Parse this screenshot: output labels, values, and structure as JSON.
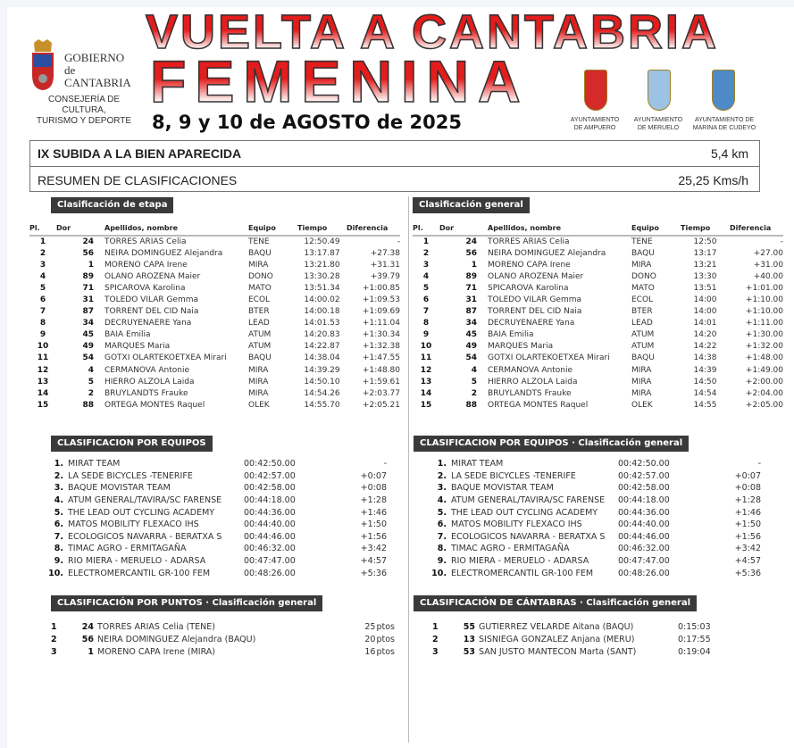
{
  "header": {
    "gov_name": [
      "GOBIERNO",
      "de",
      "CANTABRIA"
    ],
    "gov_department": [
      "CONSEJERÍA DE CULTURA,",
      "TURISMO Y DEPORTE"
    ],
    "title_line1": "VUELTA A CANTABRIA",
    "title_line2": "FEMENINA",
    "dates": "8, 9 y 10 de AGOSTO de 2025",
    "municipalities": [
      {
        "line1": "AYUNTAMIENTO",
        "line2": "DE AMPUERO",
        "color": "#d42a2a"
      },
      {
        "line1": "AYUNTAMIENTO",
        "line2": "DE MERUELO",
        "color": "#7fb0d8"
      },
      {
        "line1": "AYUNTAMIENTO DE",
        "line2": "MARINA DE CUDEYO",
        "color": "#4f8ac8"
      }
    ]
  },
  "stage": {
    "name": "IX SUBIDA A LA BIEN APARECIDA",
    "distance": "5,4 km",
    "summary": "RESUMEN DE CLASIFICACIONES",
    "speed": "25,25 Kms/h"
  },
  "columns": [
    "Pl.",
    "Dor",
    "Apellidos, nombre",
    "Equipo",
    "Tiempo",
    "Diferencia"
  ],
  "stage_classification": {
    "title": "Clasificación de etapa",
    "rows": [
      [
        "1",
        "24",
        "TORRES ARIAS Celia",
        "TENE",
        "12:50.49",
        "-"
      ],
      [
        "2",
        "56",
        "NEIRA DOMINGUEZ Alejandra",
        "BAQU",
        "13:17.87",
        "+27.38"
      ],
      [
        "3",
        "1",
        "MORENO CAPA Irene",
        "MIRA",
        "13:21.80",
        "+31.31"
      ],
      [
        "4",
        "89",
        "OLANO AROZENA Maier",
        "DONO",
        "13:30.28",
        "+39.79"
      ],
      [
        "5",
        "71",
        "SPICAROVA Karolina",
        "MATO",
        "13:51.34",
        "+1:00.85"
      ],
      [
        "6",
        "31",
        "TOLEDO VILAR Gemma",
        "ECOL",
        "14:00.02",
        "+1:09.53"
      ],
      [
        "7",
        "87",
        "TORRENT DEL CID Naia",
        "BTER",
        "14:00.18",
        "+1:09.69"
      ],
      [
        "8",
        "34",
        "DECRUYENAERE Yana",
        "LEAD",
        "14:01.53",
        "+1:11.04"
      ],
      [
        "9",
        "45",
        "BAIA Emilia",
        "ATUM",
        "14:20.83",
        "+1:30.34"
      ],
      [
        "10",
        "49",
        "MARQUES Maria",
        "ATUM",
        "14:22.87",
        "+1:32.38"
      ],
      [
        "11",
        "54",
        "GOTXI OLARTEKOETXEA Mirari",
        "BAQU",
        "14:38.04",
        "+1:47.55"
      ],
      [
        "12",
        "4",
        "CERMANOVA Antonie",
        "MIRA",
        "14:39.29",
        "+1:48.80"
      ],
      [
        "13",
        "5",
        "HIERRO ALZOLA Laida",
        "MIRA",
        "14:50.10",
        "+1:59.61"
      ],
      [
        "14",
        "2",
        "BRUYLANDTS Frauke",
        "MIRA",
        "14:54.26",
        "+2:03.77"
      ],
      [
        "15",
        "88",
        "ORTEGA MONTES Raquel",
        "OLEK",
        "14:55.70",
        "+2:05.21"
      ]
    ]
  },
  "general_classification": {
    "title": "Clasificación general",
    "rows": [
      [
        "1",
        "24",
        "TORRES ARIAS Celia",
        "TENE",
        "12:50",
        "-"
      ],
      [
        "2",
        "56",
        "NEIRA DOMINGUEZ Alejandra",
        "BAQU",
        "13:17",
        "+27.00"
      ],
      [
        "3",
        "1",
        "MORENO CAPA Irene",
        "MIRA",
        "13:21",
        "+31.00"
      ],
      [
        "4",
        "89",
        "OLANO AROZENA Maier",
        "DONO",
        "13:30",
        "+40.00"
      ],
      [
        "5",
        "71",
        "SPICAROVA Karolina",
        "MATO",
        "13:51",
        "+1:01.00"
      ],
      [
        "6",
        "31",
        "TOLEDO VILAR Gemma",
        "ECOL",
        "14:00",
        "+1:10.00"
      ],
      [
        "7",
        "87",
        "TORRENT DEL CID Naia",
        "BTER",
        "14:00",
        "+1:10.00"
      ],
      [
        "8",
        "34",
        "DECRUYENAERE Yana",
        "LEAD",
        "14:01",
        "+1:11.00"
      ],
      [
        "9",
        "45",
        "BAIA Emilia",
        "ATUM",
        "14:20",
        "+1:30.00"
      ],
      [
        "10",
        "49",
        "MARQUES Maria",
        "ATUM",
        "14:22",
        "+1:32.00"
      ],
      [
        "11",
        "54",
        "GOTXI OLARTEKOETXEA Mirari",
        "BAQU",
        "14:38",
        "+1:48.00"
      ],
      [
        "12",
        "4",
        "CERMANOVA Antonie",
        "MIRA",
        "14:39",
        "+1:49.00"
      ],
      [
        "13",
        "5",
        "HIERRO ALZOLA Laida",
        "MIRA",
        "14:50",
        "+2:00.00"
      ],
      [
        "14",
        "2",
        "BRUYLANDTS Frauke",
        "MIRA",
        "14:54",
        "+2:04.00"
      ],
      [
        "15",
        "88",
        "ORTEGA MONTES Raquel",
        "OLEK",
        "14:55",
        "+2:05.00"
      ]
    ]
  },
  "teams_stage": {
    "title": "CLASIFICACION POR EQUIPOS",
    "rows": [
      [
        "1.",
        "MIRAT TEAM",
        "00:42:50.00",
        "-"
      ],
      [
        "2.",
        "LA SEDE BICYCLES -TENERIFE",
        "00:42:57.00",
        "+0:07"
      ],
      [
        "3.",
        "BAQUE MOVISTAR TEAM",
        "00:42:58.00",
        "+0:08"
      ],
      [
        "4.",
        "ATUM GENERAL/TAVIRA/SC FARENSE",
        "00:44:18.00",
        "+1:28"
      ],
      [
        "5.",
        "THE LEAD OUT CYCLING ACADEMY",
        "00:44:36.00",
        "+1:46"
      ],
      [
        "6.",
        "MATOS MOBILITY FLEXACO IHS",
        "00:44:40.00",
        "+1:50"
      ],
      [
        "7.",
        "ECOLOGICOS NAVARRA - BERATXA S",
        "00:44:46.00",
        "+1:56"
      ],
      [
        "8.",
        "TIMAC AGRO - ERMITAGAÑA",
        "00:46:32.00",
        "+3:42"
      ],
      [
        "9.",
        "RIO MIERA - MERUELO - ADARSA",
        "00:47:47.00",
        "+4:57"
      ],
      [
        "10.",
        "ELECTROMERCANTIL GR-100 FEM",
        "00:48:26.00",
        "+5:36"
      ]
    ]
  },
  "teams_general": {
    "title": "CLASIFICACION POR EQUIPOS · Clasificación general",
    "rows": [
      [
        "1.",
        "MIRAT TEAM",
        "00:42:50.00",
        "-"
      ],
      [
        "2.",
        "LA SEDE BICYCLES -TENERIFE",
        "00:42:57.00",
        "+0:07"
      ],
      [
        "3.",
        "BAQUE MOVISTAR TEAM",
        "00:42:58.00",
        "+0:08"
      ],
      [
        "4.",
        "ATUM GENERAL/TAVIRA/SC FARENSE",
        "00:44:18.00",
        "+1:28"
      ],
      [
        "5.",
        "THE LEAD OUT CYCLING ACADEMY",
        "00:44:36.00",
        "+1:46"
      ],
      [
        "6.",
        "MATOS MOBILITY FLEXACO IHS",
        "00:44:40.00",
        "+1:50"
      ],
      [
        "7.",
        "ECOLOGICOS NAVARRA - BERATXA S",
        "00:44:46.00",
        "+1:56"
      ],
      [
        "8.",
        "TIMAC AGRO - ERMITAGAÑA",
        "00:46:32.00",
        "+3:42"
      ],
      [
        "9.",
        "RIO MIERA - MERUELO - ADARSA",
        "00:47:47.00",
        "+4:57"
      ],
      [
        "10.",
        "ELECTROMERCANTIL GR-100 FEM",
        "00:48:26.00",
        "+5:36"
      ]
    ]
  },
  "points": {
    "title": "CLASIFICACIÓN POR PUNTOS · Clasificación general",
    "unit": "ptos",
    "rows": [
      [
        "1",
        "24",
        "TORRES ARIAS Celia (TENE)",
        "25"
      ],
      [
        "2",
        "56",
        "NEIRA DOMINGUEZ Alejandra (BAQU)",
        "20"
      ],
      [
        "3",
        "1",
        "MORENO CAPA Irene (MIRA)",
        "16"
      ]
    ]
  },
  "cantabras": {
    "title": "CLASIFICACIÓN DE CÁNTABRAS · Clasificación general",
    "rows": [
      [
        "1",
        "55",
        "GUTIERREZ VELARDE Aitana (BAQU)",
        "0:15:03"
      ],
      [
        "2",
        "13",
        "SISNIEGA GONZALEZ Anjana (MERU)",
        "0:17:55"
      ],
      [
        "3",
        "53",
        "SAN JUSTO MANTECON Marta (SANT)",
        "0:19:04"
      ]
    ]
  }
}
